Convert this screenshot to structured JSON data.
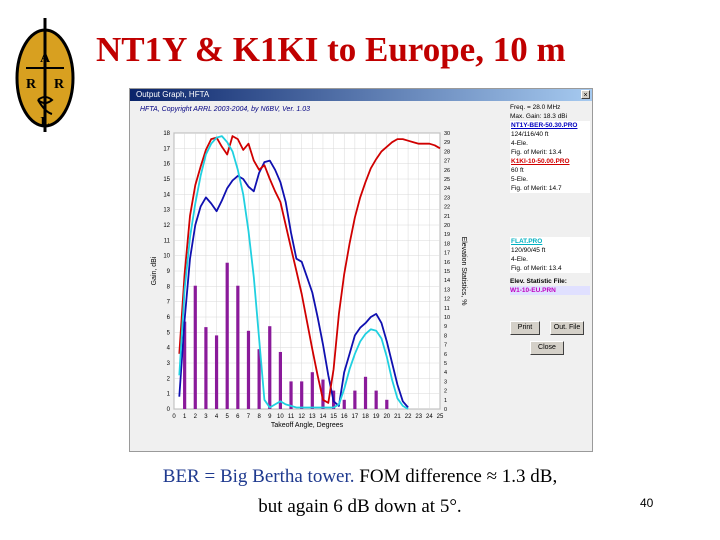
{
  "slide": {
    "title": "NT1Y & K1KI to Europe, 10 m",
    "caption_blue": "BER = Big Bertha tower.",
    "caption_rest": " FOM difference ≈ 1.3 dB,",
    "caption_line2": "but again 6 dB down at 5°.",
    "page_number": "40",
    "logo_letters": [
      "A",
      "R",
      "R",
      "L"
    ]
  },
  "window": {
    "title": "Output Graph, HFTA",
    "copyright": "HFTA, Copyright ARRL 2003-2004, by N6BV, Ver. 1.03"
  },
  "panel": {
    "freq": "Freq. = 28.0 MHz",
    "max_gain": "Max. Gain: 18.3 dBi",
    "ant1_name": "NT1Y-BER-50.30.PRO",
    "ant1_height": "124/116/40 ft",
    "ant1_type": "4-Ele.",
    "ant1_fom": "Fig. of Merit: 13.4",
    "ant2_name": "K1KI-10-50.00.PRO",
    "ant2_height": "60 ft",
    "ant2_type": "5-Ele.",
    "ant2_fom": "Fig. of Merit: 14.7",
    "ant3_name": "FLAT.PRO",
    "ant3_height": "120/90/45 ft",
    "ant3_type": "4-Ele.",
    "ant3_fom": "Fig. of Merit: 13.4",
    "elev_label": "Elev. Statistic File:",
    "elev_file": "W1-10-EU.PRN",
    "print_button": "Print",
    "outfile_button": "Out. File",
    "close_button": "Close"
  },
  "colors": {
    "title_red": "#c00000",
    "ant1": "#1010b0",
    "ant2": "#d00000",
    "ant3": "#20d0e0",
    "bars": "#8a1a9a"
  },
  "chart_data": {
    "type": "line",
    "xlabel": "Takeoff Angle, Degrees",
    "ylabel": "Gain, dBi",
    "y2label": "Elevation Statistics, %",
    "xlim": [
      0,
      25
    ],
    "ylim": [
      0,
      18
    ],
    "y2lim": [
      0,
      30
    ],
    "x_ticks": [
      "0",
      "1",
      "2",
      "3",
      "4",
      "5",
      "6",
      "7",
      "8",
      "9",
      "10",
      "11",
      "12",
      "13",
      "14",
      "15",
      "16",
      "17",
      "18",
      "19",
      "20",
      "21",
      "22",
      "23",
      "24",
      "25"
    ],
    "y_ticks": [
      "0",
      "1",
      "2",
      "3",
      "4",
      "5",
      "6",
      "7",
      "8",
      "9",
      "10",
      "11",
      "12",
      "13",
      "14",
      "15",
      "16",
      "17",
      "18"
    ],
    "y2_ticks": [
      "0",
      "1",
      "2",
      "3",
      "4",
      "5",
      "6",
      "7",
      "8",
      "9",
      "10",
      "11",
      "12",
      "13",
      "14",
      "15",
      "16",
      "17",
      "18",
      "19",
      "20",
      "21",
      "22",
      "23",
      "24",
      "25",
      "26",
      "27",
      "28",
      "29",
      "30"
    ],
    "series": [
      {
        "name": "NT1Y-BER-50.30.PRO",
        "x": [
          0.5,
          1,
          1.5,
          2,
          2.5,
          3,
          3.5,
          4,
          4.5,
          5,
          5.5,
          6,
          6.5,
          7,
          7.5,
          8,
          8.5,
          9,
          9.5,
          10,
          10.5,
          11,
          11.5,
          12,
          12.5,
          13,
          13.5,
          14,
          14.5,
          15,
          15.5,
          16,
          16.5,
          17,
          17.5,
          18,
          18.5,
          19,
          19.5,
          20,
          20.5,
          21,
          21.5,
          22
        ],
        "values": [
          0.8,
          5.8,
          9.8,
          12.0,
          13.2,
          13.8,
          13.4,
          12.9,
          13.6,
          14.4,
          14.9,
          15.2,
          15.0,
          14.5,
          14.2,
          15.4,
          16.1,
          16.2,
          15.6,
          14.8,
          13.5,
          11.5,
          9.8,
          9.6,
          8.6,
          7.6,
          6.0,
          4.2,
          2.2,
          0.5,
          0.2,
          2.4,
          3.6,
          4.8,
          5.3,
          5.6,
          6.0,
          6.2,
          5.6,
          4.4,
          3.0,
          1.6,
          0.5,
          0.1
        ]
      },
      {
        "name": "K1KI-10-50.00.PRO",
        "x": [
          0.5,
          1,
          1.5,
          2,
          2.5,
          3,
          3.5,
          4,
          4.5,
          5,
          5.5,
          6,
          6.5,
          7,
          7.5,
          8,
          8.5,
          9,
          9.5,
          10,
          10.5,
          11,
          11.5,
          12,
          12.5,
          13,
          13.5,
          14,
          14.5,
          15,
          15.5,
          16,
          16.5,
          17,
          17.5,
          18,
          18.5,
          19,
          19.5,
          20,
          20.5,
          21,
          21.5,
          22,
          22.5,
          23,
          23.5,
          24,
          24.5,
          25
        ],
        "values": [
          3.6,
          8.8,
          12.6,
          14.6,
          15.8,
          16.9,
          17.6,
          17.7,
          17.1,
          16.6,
          17.8,
          17.6,
          16.9,
          17.3,
          16.2,
          15.6,
          15.9,
          15.0,
          14.2,
          13.5,
          12.0,
          10.5,
          9.0,
          7.5,
          5.7,
          3.9,
          2.2,
          0.6,
          0.4,
          2.6,
          6.2,
          8.8,
          10.8,
          12.5,
          13.8,
          14.8,
          15.7,
          16.3,
          16.8,
          17.1,
          17.4,
          17.6,
          17.6,
          17.5,
          17.4,
          17.3,
          17.3,
          17.3,
          17.2,
          17.0
        ]
      },
      {
        "name": "FLAT.PRO",
        "x": [
          0.5,
          1,
          1.5,
          2,
          2.5,
          3,
          3.5,
          4,
          4.5,
          5,
          5.5,
          6,
          6.5,
          7,
          7.5,
          8,
          8.5,
          9,
          9.5,
          10,
          10.5,
          11,
          11.5,
          12,
          12.5,
          13,
          13.5,
          14,
          14.5,
          15,
          15.5,
          16,
          16.5,
          17,
          17.5,
          18,
          18.5,
          19,
          19.5,
          20,
          20.5,
          21,
          21.5,
          22
        ],
        "values": [
          2.2,
          7.8,
          11.2,
          13.4,
          15.2,
          16.6,
          17.3,
          17.7,
          17.8,
          17.4,
          16.8,
          15.6,
          14.0,
          11.6,
          8.6,
          4.6,
          0.6,
          0.1,
          0.3,
          0.5,
          0.3,
          0.2,
          0.1,
          0.1,
          0.1,
          0.1,
          0.1,
          0.1,
          0.1,
          0.1,
          0.3,
          1.3,
          2.6,
          3.6,
          4.4,
          4.9,
          5.2,
          5.1,
          4.6,
          3.4,
          1.9,
          0.7,
          0.2,
          0
        ]
      }
    ],
    "bar_series": {
      "name": "W1-10-EU.PRN",
      "axis": "y2",
      "x": [
        1,
        2,
        3,
        4,
        5,
        6,
        7,
        8,
        9,
        10,
        11,
        12,
        13,
        14,
        15,
        16,
        17,
        18,
        19,
        20
      ],
      "values": [
        9.5,
        13.4,
        8.9,
        8.0,
        15.9,
        13.4,
        8.5,
        6.5,
        9.0,
        6.2,
        3.0,
        3.0,
        4.0,
        3.2,
        2.0,
        1.0,
        2.0,
        3.5,
        2.0,
        1.0
      ]
    }
  }
}
